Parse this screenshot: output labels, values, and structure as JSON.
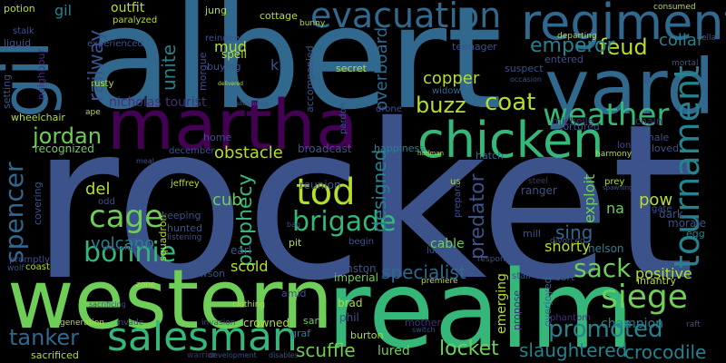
{
  "background": "#000000",
  "palette": {
    "purple": "#440154",
    "indigo": "#472d7b",
    "blue": "#3b528b",
    "steel": "#31688e",
    "teal": "#26828e",
    "green": "#1f9e89",
    "mint": "#35b779",
    "lime": "#6ece58",
    "chartreuse": "#b5de2b",
    "yellow": "#fde725"
  },
  "words": [
    {
      "text": "rocket"
    },
    {
      "text": "albert"
    },
    {
      "text": "realm"
    },
    {
      "text": "western"
    },
    {
      "text": "martha"
    },
    {
      "text": "yard"
    },
    {
      "text": "regiment"
    },
    {
      "text": "gil"
    },
    {
      "text": "chicken"
    },
    {
      "text": "salesman"
    },
    {
      "text": "evacuation"
    },
    {
      "text": "tournament"
    },
    {
      "text": "weather"
    },
    {
      "text": "siege"
    },
    {
      "text": "tod"
    },
    {
      "text": "brigade"
    },
    {
      "text": "cage"
    },
    {
      "text": "bonnie"
    },
    {
      "text": "spencer"
    },
    {
      "text": "promoted"
    },
    {
      "text": "coat"
    },
    {
      "text": "sack"
    },
    {
      "text": "jordan"
    },
    {
      "text": "tanker"
    },
    {
      "text": "feud"
    },
    {
      "text": "emperor"
    },
    {
      "text": "railway"
    },
    {
      "text": "prophecy"
    },
    {
      "text": "locket"
    },
    {
      "text": "scuffle"
    },
    {
      "text": "slaughtered"
    },
    {
      "text": "crocodile"
    },
    {
      "text": "specialist"
    },
    {
      "text": "predator"
    },
    {
      "text": "unite"
    },
    {
      "text": "designed"
    },
    {
      "text": "buzz"
    },
    {
      "text": "obstacle"
    },
    {
      "text": "volcano"
    },
    {
      "text": "sing"
    },
    {
      "text": "collar"
    },
    {
      "text": "overboard"
    },
    {
      "text": "copper"
    },
    {
      "text": "del"
    },
    {
      "text": "pow"
    },
    {
      "text": "cub"
    },
    {
      "text": "ki"
    },
    {
      "text": "mud"
    },
    {
      "text": "scold"
    },
    {
      "text": "positive"
    },
    {
      "text": "champion"
    },
    {
      "text": "shorty"
    },
    {
      "text": "exploit"
    },
    {
      "text": "outfit"
    },
    {
      "text": "nelson"
    },
    {
      "text": "lured"
    },
    {
      "text": "emerging"
    },
    {
      "text": "cable"
    },
    {
      "text": "na"
    },
    {
      "text": "nicholas tourist"
    },
    {
      "text": "potion"
    },
    {
      "text": "gil"
    },
    {
      "text": "sacrificed"
    },
    {
      "text": "paralyzed"
    },
    {
      "text": "jung"
    },
    {
      "text": "cottage"
    },
    {
      "text": "wheelchair"
    },
    {
      "text": "rusty"
    },
    {
      "text": "recognized"
    },
    {
      "text": "broadcast"
    },
    {
      "text": "reunion"
    },
    {
      "text": "secret"
    },
    {
      "text": "teenager"
    },
    {
      "text": "suspect"
    },
    {
      "text": "entered"
    },
    {
      "text": "departing"
    },
    {
      "text": "happiness"
    },
    {
      "text": "widower"
    },
    {
      "text": "hatch"
    },
    {
      "text": "accompanied"
    },
    {
      "text": "squadron"
    },
    {
      "text": "keeping"
    },
    {
      "text": "hunted"
    },
    {
      "text": "listening"
    },
    {
      "text": "crowned"
    },
    {
      "text": "imperial"
    },
    {
      "text": "winston"
    },
    {
      "text": "brad"
    },
    {
      "text": "phil"
    },
    {
      "text": "burton"
    },
    {
      "text": "graf"
    },
    {
      "text": "sand"
    },
    {
      "text": "amid"
    },
    {
      "text": "mother"
    },
    {
      "text": "overjoyed"
    },
    {
      "text": "propose"
    },
    {
      "text": "infantry"
    },
    {
      "text": "morale"
    },
    {
      "text": "egg"
    },
    {
      "text": "loved"
    },
    {
      "text": "tortured"
    },
    {
      "text": "michelle"
    },
    {
      "text": "ranger"
    },
    {
      "text": "mill"
    },
    {
      "text": "phantom"
    },
    {
      "text": "gate"
    },
    {
      "text": "dark"
    },
    {
      "text": "prey"
    },
    {
      "text": "roy"
    },
    {
      "text": "male"
    },
    {
      "text": "chain"
    },
    {
      "text": "lone"
    },
    {
      "text": "liquid"
    },
    {
      "text": "stalk"
    },
    {
      "text": "neighbour"
    },
    {
      "text": "experienced"
    },
    {
      "text": "setting"
    },
    {
      "text": "reindeer"
    },
    {
      "text": "morgue"
    },
    {
      "text": "spell"
    },
    {
      "text": "buying"
    },
    {
      "text": "bunny"
    },
    {
      "text": "ape"
    },
    {
      "text": "home"
    },
    {
      "text": "december"
    },
    {
      "text": "jeffrey"
    },
    {
      "text": "odd"
    },
    {
      "text": "covering"
    },
    {
      "text": "promptly"
    },
    {
      "text": "wolf"
    },
    {
      "text": "coast"
    },
    {
      "text": "earl"
    },
    {
      "text": "pit"
    },
    {
      "text": "begin"
    },
    {
      "text": "luring"
    },
    {
      "text": "divorced"
    },
    {
      "text": "respond"
    },
    {
      "text": "sort"
    },
    {
      "text": "stair"
    },
    {
      "text": "premiere"
    },
    {
      "text": "dawson"
    },
    {
      "text": "contain"
    },
    {
      "text": "clothing"
    },
    {
      "text": "zone"
    },
    {
      "text": "generation"
    },
    {
      "text": "invade"
    },
    {
      "text": "invasion"
    },
    {
      "text": "warrior"
    },
    {
      "text": "development"
    },
    {
      "text": "disables"
    },
    {
      "text": "us"
    },
    {
      "text": "prepared"
    },
    {
      "text": "pardon"
    },
    {
      "text": "drone"
    },
    {
      "text": "hoffman"
    },
    {
      "text": "harmony"
    },
    {
      "text": "consumed"
    },
    {
      "text": "cellar"
    },
    {
      "text": "mortal"
    },
    {
      "text": "bit"
    },
    {
      "text": "steel"
    },
    {
      "text": "accompany"
    },
    {
      "text": "descends"
    },
    {
      "text": "bag"
    },
    {
      "text": "meal"
    },
    {
      "text": "switch"
    },
    {
      "text": "raft"
    },
    {
      "text": "delivered"
    },
    {
      "text": "abandoning"
    },
    {
      "text": "occasion"
    },
    {
      "text": "sacrificing"
    },
    {
      "text": "spawning"
    }
  ]
}
